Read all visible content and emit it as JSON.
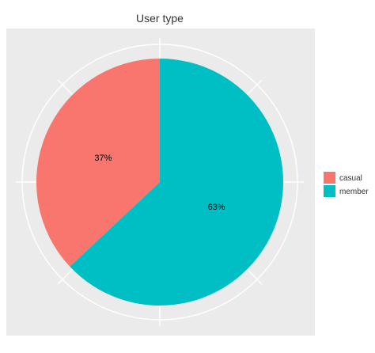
{
  "chart_data": {
    "type": "pie",
    "title": "User type",
    "categories": [
      "casual",
      "member"
    ],
    "values": [
      37,
      63
    ],
    "labels": [
      "37%",
      "63%"
    ],
    "colors": [
      "#F8766D",
      "#00BFC4"
    ],
    "panel_background": "#EBEBEB",
    "legend_placement": "right",
    "grid": true
  }
}
